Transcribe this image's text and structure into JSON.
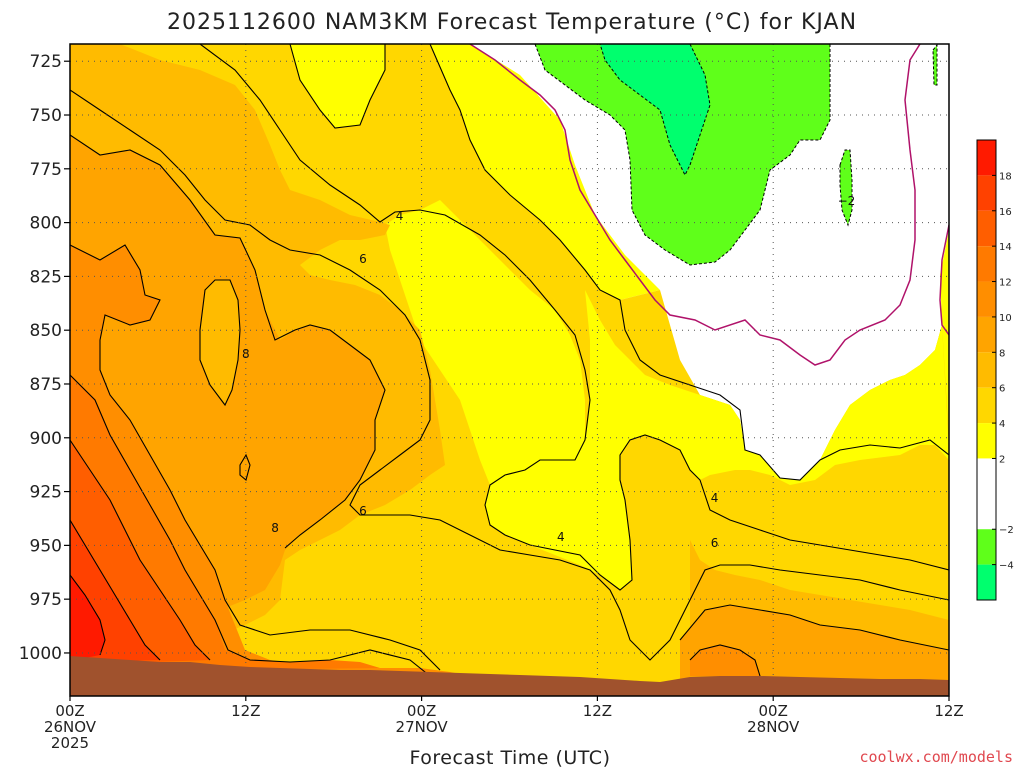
{
  "title": "2025112600 NAM3KM Forecast Temperature (°C) for KJAN",
  "credit": "coolwx.com/models",
  "colors": {
    "ground": "#a0522d",
    "freezing_line": "#b0126a",
    "contour_line": "#000000"
  },
  "chart_data": {
    "type": "heatmap",
    "title": "2025112600 NAM3KM Forecast Temperature (°C) for KJAN",
    "xlabel": "Forecast Time (UTC)",
    "ylabel": "",
    "x_range_hours": [
      0,
      60
    ],
    "y_range_hpa": [
      1020,
      717
    ],
    "y_ticks": [
      {
        "value": 725,
        "label": "725"
      },
      {
        "value": 750,
        "label": "750"
      },
      {
        "value": 775,
        "label": "775"
      },
      {
        "value": 800,
        "label": "800"
      },
      {
        "value": 825,
        "label": "825"
      },
      {
        "value": 850,
        "label": "850"
      },
      {
        "value": 875,
        "label": "875"
      },
      {
        "value": 900,
        "label": "900"
      },
      {
        "value": 925,
        "label": "925"
      },
      {
        "value": 950,
        "label": "950"
      },
      {
        "value": 975,
        "label": "975"
      },
      {
        "value": 1000,
        "label": "1000"
      }
    ],
    "x_ticks": [
      {
        "hour": 0,
        "lines": [
          "00Z",
          "26NOV",
          "2025"
        ]
      },
      {
        "hour": 12,
        "lines": [
          "12Z"
        ]
      },
      {
        "hour": 24,
        "lines": [
          "00Z",
          "27NOV"
        ]
      },
      {
        "hour": 36,
        "lines": [
          "12Z"
        ]
      },
      {
        "hour": 48,
        "lines": [
          "00Z",
          "28NOV"
        ]
      },
      {
        "hour": 60,
        "lines": [
          "12Z"
        ]
      }
    ],
    "grid": true,
    "legend_placement": "right",
    "colorbar": {
      "levels": [
        {
          "from": 18,
          "to": 20,
          "color": "#ff1a00"
        },
        {
          "from": 16,
          "to": 18,
          "color": "#ff4100"
        },
        {
          "from": 14,
          "to": 16,
          "color": "#ff5e00"
        },
        {
          "from": 12,
          "to": 14,
          "color": "#ff7a00"
        },
        {
          "from": 10,
          "to": 12,
          "color": "#ff8e00"
        },
        {
          "from": 8,
          "to": 10,
          "color": "#ffa400"
        },
        {
          "from": 6,
          "to": 8,
          "color": "#ffbb00"
        },
        {
          "from": 4,
          "to": 6,
          "color": "#ffd700"
        },
        {
          "from": 2,
          "to": 4,
          "color": "#ffff00"
        },
        {
          "from": 0,
          "to": 2,
          "color": "#ffffff"
        },
        {
          "from": -2,
          "to": 0,
          "color": "#ffffff"
        },
        {
          "from": -4,
          "to": -2,
          "color": "#5fff1a"
        },
        {
          "from": -6,
          "to": -4,
          "color": "#00ff6e"
        }
      ],
      "tick_labels": [
        "18",
        "16",
        "14",
        "12",
        "10",
        "8",
        "6",
        "4",
        "2",
        "−2",
        "−4"
      ]
    },
    "bands": [
      {
        "level": "6 to 8",
        "color": "#ffbb00"
      },
      {
        "level": "8 to 10",
        "color": "#ffa400"
      },
      {
        "level": "10 to 12",
        "color": "#ff8e00"
      },
      {
        "level": "12 to 14",
        "color": "#ff7a00"
      },
      {
        "level": "14 to 16",
        "color": "#ff5e00"
      },
      {
        "level": "16 to 18",
        "color": "#ff4100"
      },
      {
        "level": "18 to 20",
        "color": "#ff1a00"
      }
    ],
    "contour_labels": [
      {
        "text": "4",
        "hour": 22.5,
        "hpa": 797
      },
      {
        "text": "6",
        "hour": 20,
        "hpa": 817
      },
      {
        "text": "8",
        "hour": 12,
        "hpa": 861
      },
      {
        "text": "6",
        "hour": 20,
        "hpa": 934
      },
      {
        "text": "8",
        "hour": 14,
        "hpa": 942
      },
      {
        "text": "4",
        "hour": 33.5,
        "hpa": 946
      },
      {
        "text": "4",
        "hour": 44,
        "hpa": 928
      },
      {
        "text": "6",
        "hour": 44,
        "hpa": 949
      },
      {
        "text": "−2",
        "hour": 53,
        "hpa": 790
      }
    ]
  }
}
